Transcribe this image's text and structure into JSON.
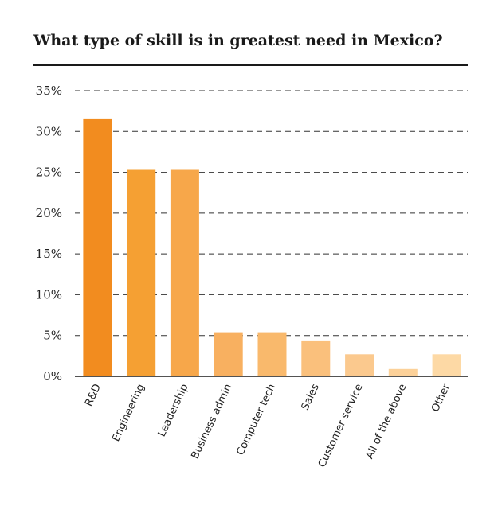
{
  "chart_data": {
    "type": "bar",
    "title": "What type of skill is in greatest need in Mexico?",
    "categories": [
      "R&D",
      "Engineering",
      "Leadership",
      "Business admin",
      "Computer tech",
      "Sales",
      "Customer service",
      "All of the above",
      "Other"
    ],
    "values": [
      31.6,
      25.3,
      25.3,
      5.4,
      5.4,
      4.4,
      2.7,
      0.9,
      2.7
    ],
    "colors": [
      "#f28c1f",
      "#f5a033",
      "#f7a74a",
      "#f8b060",
      "#f9b96c",
      "#fac07c",
      "#fbc98e",
      "#fcd199",
      "#fdd9a5"
    ],
    "xlabel": "",
    "ylabel": "",
    "ylim": [
      0,
      35
    ],
    "yticks": [
      "0%",
      "5%",
      "10%",
      "15%",
      "20%",
      "25%",
      "30%",
      "35%"
    ],
    "ytick_values": [
      0,
      5,
      10,
      15,
      20,
      25,
      30,
      35
    ],
    "grid": true
  }
}
